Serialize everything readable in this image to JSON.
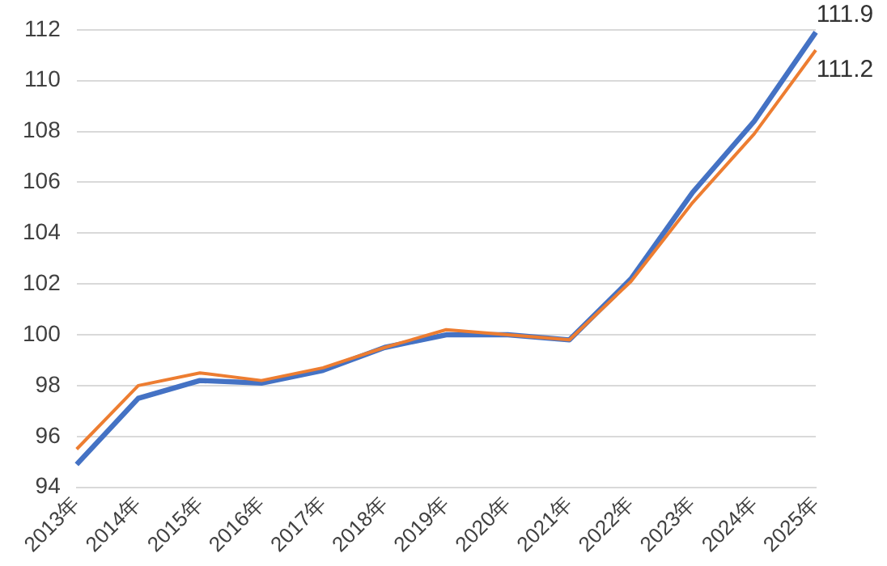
{
  "chart_data": {
    "type": "line",
    "categories": [
      "2013年",
      "2014年",
      "2015年",
      "2016年",
      "2017年",
      "2018年",
      "2019年",
      "2020年",
      "2021年",
      "2022年",
      "2023年",
      "2024年",
      "2025年"
    ],
    "series": [
      {
        "color": "#4472c4",
        "values": [
          94.9,
          97.5,
          98.2,
          98.1,
          98.6,
          99.5,
          100.0,
          100.0,
          99.8,
          102.2,
          105.6,
          108.4,
          111.9
        ],
        "value_labels": [
          null,
          null,
          null,
          null,
          null,
          null,
          null,
          null,
          null,
          null,
          null,
          null,
          "111.9"
        ]
      },
      {
        "color": "#ed7d31",
        "values": [
          95.5,
          98.0,
          98.5,
          98.2,
          98.7,
          99.5,
          100.2,
          100.0,
          99.8,
          102.1,
          105.2,
          107.9,
          111.2
        ],
        "value_labels": [
          null,
          null,
          null,
          null,
          null,
          null,
          null,
          null,
          null,
          null,
          null,
          null,
          "111.2"
        ]
      }
    ],
    "ylim": [
      94,
      112
    ],
    "yticks": [
      94,
      96,
      98,
      100,
      102,
      104,
      106,
      108,
      110,
      112
    ],
    "grid": "y",
    "legend": false,
    "marker": "none",
    "line_style": "solid"
  }
}
